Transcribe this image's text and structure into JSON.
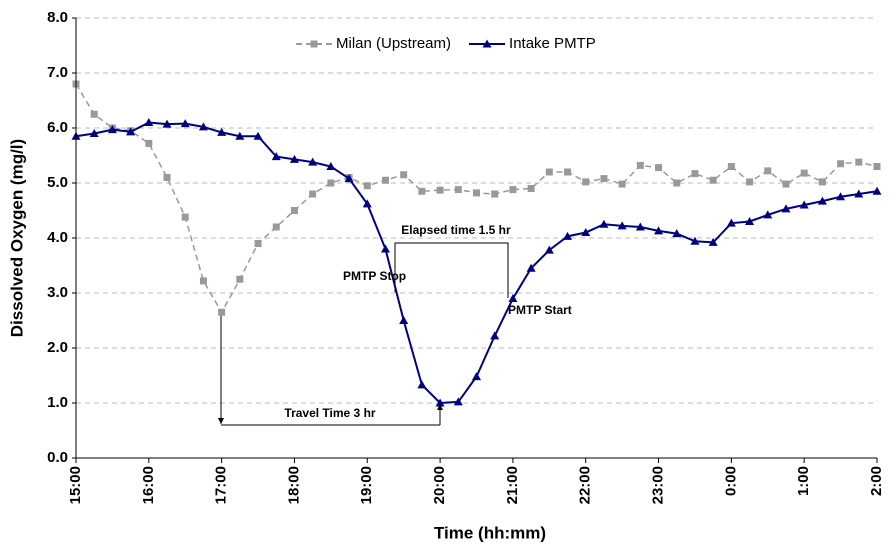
{
  "chart_data": {
    "type": "line",
    "xlabel": "Time (hh:mm)",
    "ylabel": "Dissolved Oxygen (mg/l)",
    "categories": [
      "15:00",
      null,
      null,
      null,
      "16:00",
      null,
      null,
      null,
      "17:00",
      null,
      null,
      null,
      "18:00",
      null,
      null,
      null,
      "19:00",
      null,
      null,
      null,
      "20:00",
      null,
      null,
      null,
      "21:00",
      null,
      null,
      null,
      "22:00",
      null,
      null,
      null,
      "23:00",
      null,
      null,
      null,
      "0:00",
      null,
      null,
      null,
      "1:00",
      null,
      null,
      null,
      "2:00"
    ],
    "series": [
      {
        "name": "Milan (Upstream)",
        "color": "#999999",
        "marker": "square",
        "dashed": true,
        "values": [
          6.8,
          6.25,
          6.0,
          5.95,
          5.72,
          5.1,
          4.38,
          3.22,
          2.65,
          3.25,
          3.9,
          4.2,
          4.5,
          4.8,
          5.0,
          5.1,
          4.95,
          5.05,
          5.15,
          4.85,
          4.87,
          4.88,
          4.82,
          4.8,
          4.88,
          4.9,
          5.2,
          5.2,
          5.02,
          5.08,
          4.98,
          5.32,
          5.28,
          5.0,
          5.17,
          5.05,
          5.3,
          5.02,
          5.22,
          4.98,
          5.18,
          5.02,
          5.35,
          5.38,
          5.3
        ]
      },
      {
        "name": "Intake PMTP",
        "color": "#000080",
        "marker": "triangle",
        "dashed": false,
        "values": [
          5.85,
          5.9,
          5.97,
          5.93,
          6.1,
          6.07,
          6.08,
          6.02,
          5.92,
          5.85,
          5.85,
          5.48,
          5.43,
          5.38,
          5.3,
          5.08,
          4.62,
          3.8,
          2.5,
          1.33,
          1.0,
          1.02,
          1.48,
          2.22,
          2.9,
          3.45,
          3.78,
          4.03,
          4.1,
          4.25,
          4.22,
          4.2,
          4.13,
          4.08,
          3.94,
          3.92,
          4.27,
          4.3,
          4.42,
          4.53,
          4.6,
          4.67,
          4.75,
          4.8,
          4.85
        ]
      }
    ],
    "ylim": [
      0,
      8
    ],
    "yticks": [
      {
        "value": 0,
        "label": "0.0"
      },
      {
        "value": 1,
        "label": "1.0"
      },
      {
        "value": 2,
        "label": "2.0"
      },
      {
        "value": 3,
        "label": "3.0"
      },
      {
        "value": 4,
        "label": "4.0"
      },
      {
        "value": 5,
        "label": "5.0"
      },
      {
        "value": 6,
        "label": "6.0"
      },
      {
        "value": 7,
        "label": "7.0"
      },
      {
        "value": 8,
        "label": "8.0"
      }
    ],
    "grid": true,
    "legend": "top",
    "annotations": [
      "Travel Time 3 hr",
      "Elapsed time  1.5 hr",
      "PMTP Stop",
      "PMTP Start"
    ]
  }
}
